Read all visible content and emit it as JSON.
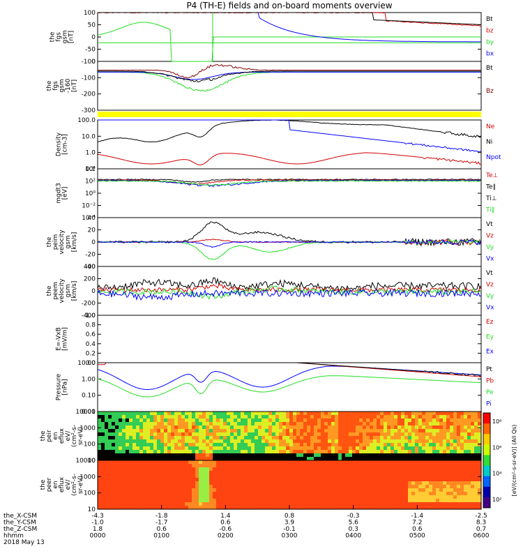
{
  "title": "P4 (TH-E) fields and on-board moments overview",
  "colors": {
    "black": "#000000",
    "red": "#d00000",
    "green": "#22dd22",
    "blue": "#0000ff",
    "darkred": "#800000",
    "yellow": "#ffff00"
  },
  "chart_data": {
    "type": "line",
    "x_range_hhmm": [
      "0000",
      "0600"
    ],
    "panels": [
      {
        "id": "fgs_gsm",
        "label": [
          "the",
          "fgs",
          "gsm",
          "[nT]"
        ],
        "y_ticks": [
          "100",
          "50",
          "0",
          "-50",
          "-100"
        ],
        "ylim": [
          -100,
          100
        ],
        "legend": [
          {
            "name": "Bt",
            "color": "black"
          },
          {
            "name": "bz",
            "color": "red"
          },
          {
            "name": "by",
            "color": "green"
          },
          {
            "name": "bx",
            "color": "blue"
          }
        ]
      },
      {
        "id": "fgs_gsm_dc",
        "label": [
          "the",
          "fgs",
          "gsm",
          "-160",
          "[nT]"
        ],
        "y_ticks": [
          "0",
          "-100",
          "-200",
          "-300"
        ],
        "ylim": [
          -350,
          50
        ],
        "legend": [
          {
            "name": "Bt",
            "color": "black"
          },
          {
            "name": "Bz",
            "color": "darkred"
          }
        ]
      },
      {
        "id": "density",
        "label": [
          "Density",
          "[cm-3]"
        ],
        "y_ticks": [
          "100.0",
          "10.0",
          "1.0",
          "0.1"
        ],
        "log": true,
        "legend": [
          {
            "name": "Ne",
            "color": "red"
          },
          {
            "name": "Ni",
            "color": "black"
          },
          {
            "name": "Npot",
            "color": "blue"
          }
        ]
      },
      {
        "id": "temp",
        "label": [
          "mgdt3",
          "[eV]"
        ],
        "y_ticks": [
          "10⁴",
          "10²",
          "10⁰",
          "10⁻²",
          "10⁻⁴"
        ],
        "log": true,
        "legend": [
          {
            "name": "Te⊥",
            "color": "red"
          },
          {
            "name": "Te∥",
            "color": "black"
          },
          {
            "name": "Ti⊥",
            "color": "black"
          },
          {
            "name": "Ti∥",
            "color": "green"
          }
        ]
      },
      {
        "id": "peim_vel",
        "label": [
          "the",
          "peim",
          "velocity",
          "gsm",
          "[km/s]"
        ],
        "y_ticks": [
          "40",
          "20",
          "0",
          "-20",
          "-40"
        ],
        "ylim": [
          -40,
          40
        ],
        "legend": [
          {
            "name": "Vt",
            "color": "black"
          },
          {
            "name": "Vz",
            "color": "red"
          },
          {
            "name": "Vy",
            "color": "green"
          },
          {
            "name": "Vx",
            "color": "blue"
          }
        ]
      },
      {
        "id": "peem_vel",
        "label": [
          "the",
          "peem",
          "velocity",
          "gsm",
          "[km/s]"
        ],
        "y_ticks": [
          "400",
          "200",
          "0",
          "-200",
          "-400"
        ],
        "ylim": [
          -400,
          400
        ],
        "legend": [
          {
            "name": "Vt",
            "color": "black"
          },
          {
            "name": "Vz",
            "color": "red"
          },
          {
            "name": "Vy",
            "color": "green"
          },
          {
            "name": "Vx",
            "color": "blue"
          }
        ]
      },
      {
        "id": "efield",
        "label": [
          "E=-VxB",
          "[mV/m]"
        ],
        "y_ticks": [
          "1.0",
          "0.8",
          "0.6",
          "0.4",
          "0.2",
          "0.0"
        ],
        "ylim": [
          0,
          1
        ],
        "legend": [
          {
            "name": "Ez",
            "color": "red"
          },
          {
            "name": "Ey",
            "color": "green"
          },
          {
            "name": "Ex",
            "color": "blue"
          }
        ]
      },
      {
        "id": "pressure",
        "label": [
          "Pressure",
          "[nPa]"
        ],
        "y_ticks": [
          "10.00",
          "1.00",
          "0.10",
          "0.01"
        ],
        "log": true,
        "legend": [
          {
            "name": "Pt",
            "color": "black"
          },
          {
            "name": "Pb",
            "color": "red"
          },
          {
            "name": "Pe",
            "color": "green"
          },
          {
            "name": "Pi",
            "color": "blue"
          }
        ]
      },
      {
        "id": "peir_eflux",
        "label": [
          "the",
          "peir",
          "en",
          "eflux",
          "eV/",
          "(cm²-s-",
          "sr-eV)"
        ],
        "y_ticks": [
          "10000",
          "1000",
          "100",
          "10"
        ],
        "type": "heatmap"
      },
      {
        "id": "peer_eflux",
        "label": [
          "the",
          "peer",
          "en",
          "eflux",
          "eV/",
          "(cm²-s-",
          "sr-eV)"
        ],
        "y_ticks": [
          "10000",
          "1000",
          "100",
          "10"
        ],
        "type": "heatmap"
      }
    ],
    "colorbar": {
      "ticks": [
        "10⁸",
        "10⁶",
        "10⁴",
        "10²"
      ],
      "label": "[eV/(cm²-s-sr-eV)] (All Qs)"
    },
    "ephemeris": {
      "rows": [
        {
          "label": "the_X-CSM",
          "values": [
            "-4.3",
            "-1.8",
            "1.4",
            "0.8",
            "-0.3",
            "-1.4",
            "-2.5"
          ]
        },
        {
          "label": "the_Y-CSM",
          "values": [
            "-1.0",
            "-1.7",
            "0.6",
            "3.9",
            "5.6",
            "7.2",
            "8.3"
          ]
        },
        {
          "label": "the_Z-CSM",
          "values": [
            "1.8",
            "0.6",
            "-0.6",
            "-0.1",
            "0.3",
            "0.6",
            "0.7"
          ]
        },
        {
          "label": "hhmm",
          "values": [
            "0000",
            "0100",
            "0200",
            "0300",
            "0400",
            "0500",
            "0600"
          ]
        }
      ],
      "date": "2018 May 13"
    }
  }
}
